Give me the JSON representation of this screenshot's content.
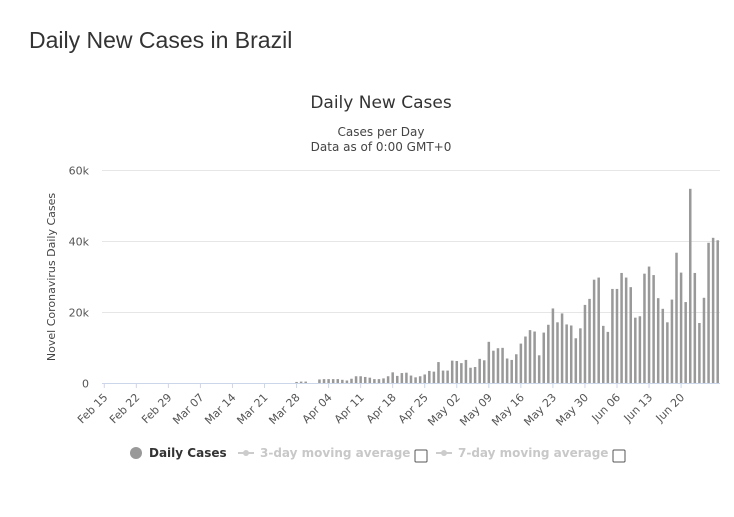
{
  "page": {
    "title": "Daily New Cases in Brazil"
  },
  "chart_data": {
    "type": "bar",
    "title": "Daily New Cases",
    "subtitle": [
      "Cases per Day",
      "Data as of 0:00 GMT+0"
    ],
    "ylabel": "Novel Coronavirus Daily Cases",
    "xlabel": "",
    "ylim": [
      0,
      60000
    ],
    "y_ticks": [
      0,
      20000,
      40000,
      60000
    ],
    "y_tick_labels": [
      "0",
      "20k",
      "40k",
      "60k"
    ],
    "x_tick_labels": [
      "Feb 15",
      "Feb 22",
      "Feb 29",
      "Mar 07",
      "Mar 14",
      "Mar 21",
      "Mar 28",
      "Apr 04",
      "Apr 11",
      "Apr 18",
      "Apr 25",
      "May 02",
      "May 09",
      "May 16",
      "May 23",
      "May 30",
      "Jun 06",
      "Jun 13",
      "Jun 20"
    ],
    "start_date": "Feb 15",
    "bar_color": "#999999",
    "grid_color": "#e6e6e6",
    "series": [
      {
        "name": "Daily Cases",
        "values": [
          0,
          0,
          0,
          0,
          0,
          0,
          0,
          0,
          0,
          0,
          0,
          0,
          0,
          0,
          0,
          0,
          0,
          0,
          0,
          0,
          0,
          0,
          0,
          0,
          0,
          0,
          0,
          0,
          0,
          0,
          0,
          0,
          0,
          0,
          0,
          0,
          0,
          0,
          0,
          0,
          0,
          0,
          300,
          400,
          400,
          0,
          0,
          1000,
          1100,
          1100,
          1100,
          1100,
          900,
          700,
          1200,
          1900,
          1900,
          1700,
          1500,
          1100,
          1100,
          1300,
          1900,
          3000,
          2000,
          2800,
          2900,
          2100,
          1600,
          1900,
          2400,
          3400,
          3200,
          5900,
          3500,
          3500,
          6300,
          6200,
          5600,
          6500,
          4300,
          4500,
          6800,
          6400,
          11600,
          9100,
          9800,
          9900,
          6900,
          6500,
          8100,
          11100,
          13100,
          14900,
          14500,
          7800,
          14200,
          16400,
          21000,
          17100,
          19600,
          16500,
          16200,
          12600,
          15400,
          22000,
          23700,
          29100,
          29700,
          16100,
          14400,
          26500,
          26500,
          31000,
          29700,
          27000,
          18400,
          18800,
          30800,
          32800,
          30400,
          23900,
          20900,
          17100,
          23500,
          36700,
          31100,
          22800,
          54700,
          31000,
          16900,
          24000,
          39500,
          40900,
          40200
        ]
      }
    ],
    "legend": [
      {
        "name": "Daily Cases",
        "active": true
      },
      {
        "name": "3-day moving average",
        "active": false
      },
      {
        "name": "7-day moving average",
        "active": false
      }
    ]
  }
}
